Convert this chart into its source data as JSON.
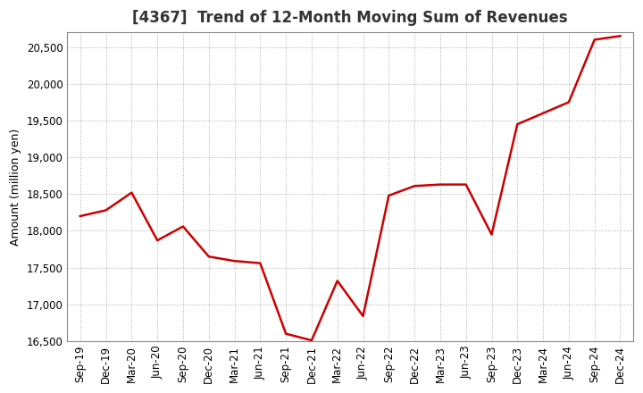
{
  "title": "[4367]  Trend of 12-Month Moving Sum of Revenues",
  "ylabel": "Amount (million yen)",
  "line_color": "#cc0000",
  "line_width": 1.8,
  "background_color": "#ffffff",
  "grid_color": "#999999",
  "ylim": [
    16500,
    20700
  ],
  "yticks": [
    16500,
    17000,
    17500,
    18000,
    18500,
    19000,
    19500,
    20000,
    20500
  ],
  "x_labels": [
    "Sep-19",
    "Dec-19",
    "Mar-20",
    "Jun-20",
    "Sep-20",
    "Dec-20",
    "Mar-21",
    "Jun-21",
    "Sep-21",
    "Dec-21",
    "Mar-22",
    "Jun-22",
    "Sep-22",
    "Dec-22",
    "Mar-23",
    "Jun-23",
    "Sep-23",
    "Dec-23",
    "Mar-24",
    "Jun-24",
    "Sep-24",
    "Dec-24"
  ],
  "values": [
    18200,
    18280,
    18520,
    17870,
    18060,
    17650,
    17590,
    17560,
    16600,
    16510,
    17320,
    16840,
    18480,
    18610,
    18630,
    18630,
    17950,
    19450,
    19600,
    19750,
    20600,
    20650
  ],
  "title_fontsize": 12,
  "ylabel_fontsize": 9,
  "tick_fontsize": 8.5
}
